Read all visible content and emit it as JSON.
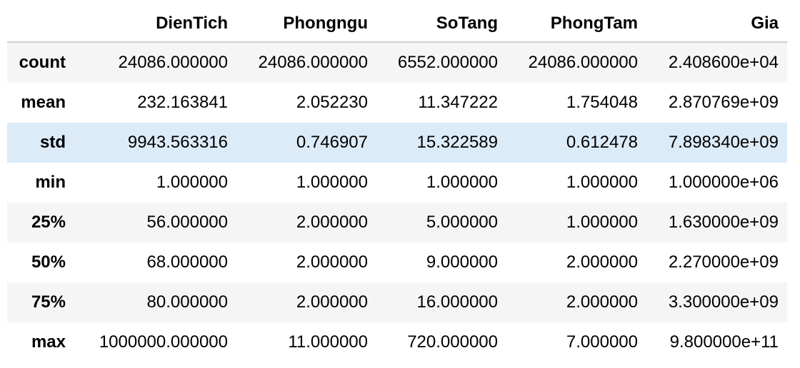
{
  "table": {
    "columns": [
      "DienTich",
      "Phongngu",
      "SoTang",
      "PhongTam",
      "Gia"
    ],
    "rows": [
      {
        "label": "count",
        "cells": [
          "24086.000000",
          "24086.000000",
          "6552.000000",
          "24086.000000",
          "2.408600e+04"
        ]
      },
      {
        "label": "mean",
        "cells": [
          "232.163841",
          "2.052230",
          "11.347222",
          "1.754048",
          "2.870769e+09"
        ]
      },
      {
        "label": "std",
        "cells": [
          "9943.563316",
          "0.746907",
          "15.322589",
          "0.612478",
          "7.898340e+09"
        ]
      },
      {
        "label": "min",
        "cells": [
          "1.000000",
          "1.000000",
          "1.000000",
          "1.000000",
          "1.000000e+06"
        ]
      },
      {
        "label": "25%",
        "cells": [
          "56.000000",
          "2.000000",
          "5.000000",
          "1.000000",
          "1.630000e+09"
        ]
      },
      {
        "label": "50%",
        "cells": [
          "68.000000",
          "2.000000",
          "9.000000",
          "2.000000",
          "2.270000e+09"
        ]
      },
      {
        "label": "75%",
        "cells": [
          "80.000000",
          "2.000000",
          "16.000000",
          "2.000000",
          "3.300000e+09"
        ]
      },
      {
        "label": "max",
        "cells": [
          "1000000.000000",
          "11.000000",
          "720.000000",
          "7.000000",
          "9.800000e+11"
        ]
      }
    ]
  },
  "colors": {
    "row_stripe": "#f5f5f5",
    "row_hover": "#dcebf8",
    "header_border": "#cfcfcf"
  }
}
